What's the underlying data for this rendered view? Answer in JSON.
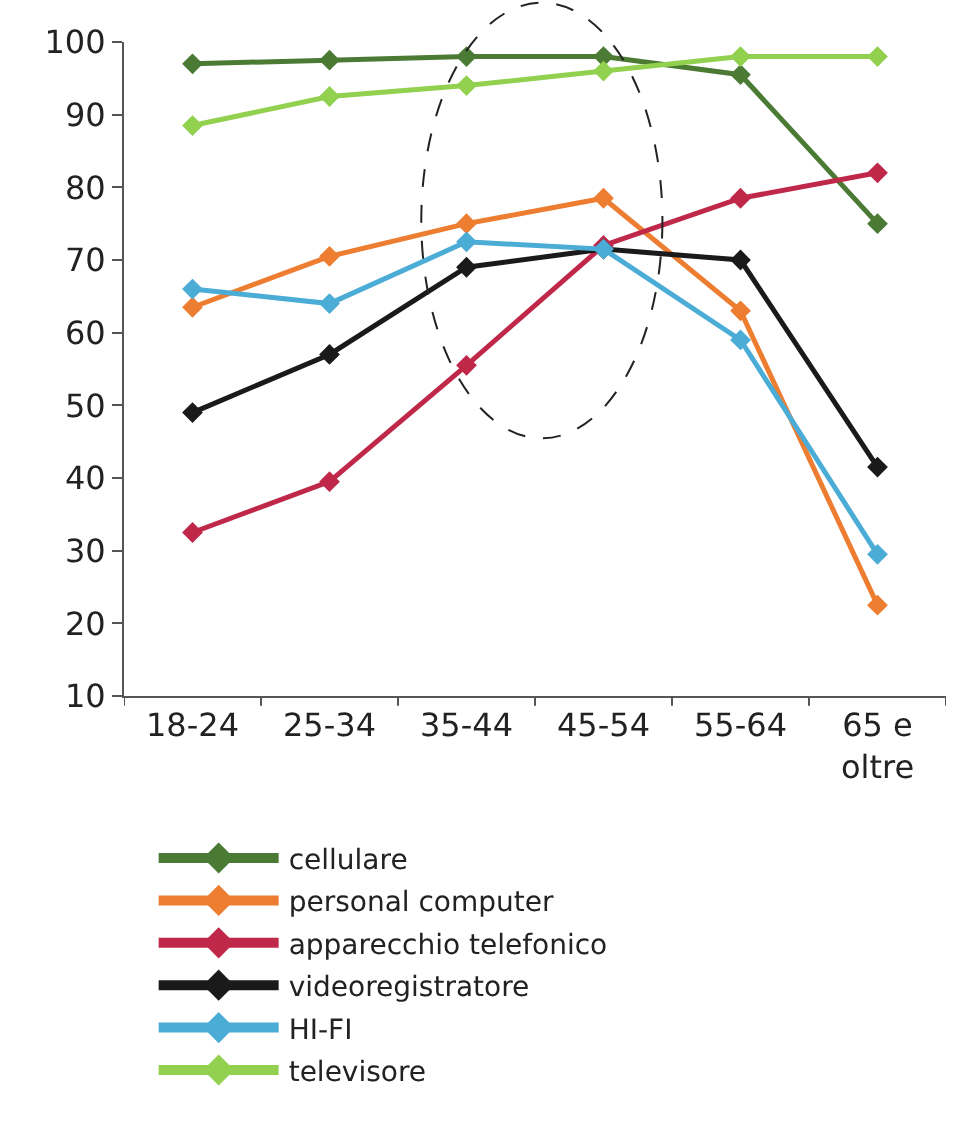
{
  "chart_data": {
    "type": "line",
    "categories": [
      "18-24",
      "25-34",
      "35-44",
      "45-54",
      "55-64",
      "65 e oltre"
    ],
    "series": [
      {
        "name": "cellulare",
        "color": "#4a7a34",
        "values": [
          97,
          97.5,
          98,
          98,
          95.5,
          75
        ]
      },
      {
        "name": "personal computer",
        "color": "#ed7d31",
        "values": [
          63.5,
          70.5,
          75,
          78.5,
          63,
          22.5
        ]
      },
      {
        "name": "apparecchio telefonico",
        "color": "#c0284a",
        "values": [
          32.5,
          39.5,
          55.5,
          72,
          78.5,
          82
        ]
      },
      {
        "name": "videoregistratore",
        "color": "#1a1a1a",
        "values": [
          49,
          57,
          69,
          71.5,
          70,
          41.5
        ]
      },
      {
        "name": "HI-FI",
        "color": "#4bacd6",
        "values": [
          66,
          64,
          72.5,
          71.5,
          59,
          29.5
        ]
      },
      {
        "name": "televisore",
        "color": "#92d050",
        "values": [
          88.5,
          92.5,
          94,
          96,
          98,
          98
        ]
      }
    ],
    "ylim": [
      10,
      100
    ],
    "yticks": [
      10,
      20,
      30,
      40,
      50,
      60,
      70,
      80,
      90,
      100
    ],
    "legend": "bottom",
    "marker": "diamond",
    "line_style": "solid"
  }
}
